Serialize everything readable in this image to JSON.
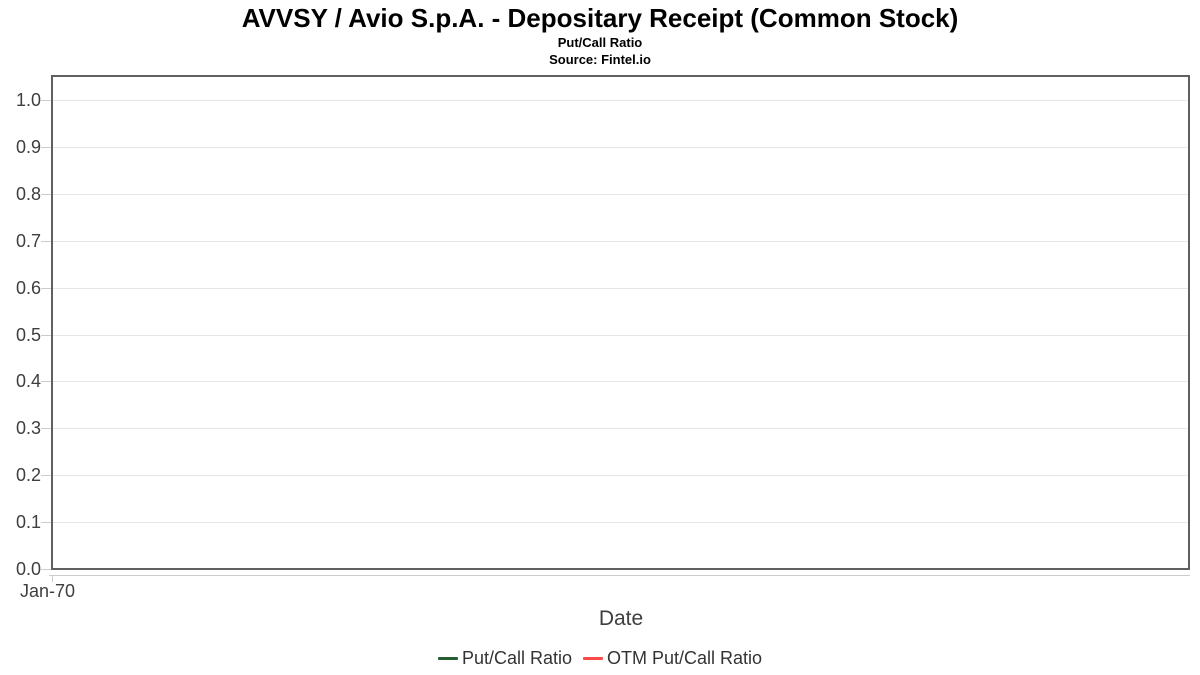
{
  "chart_data": {
    "type": "line",
    "title": "AVVSY / Avio S.p.A. - Depositary Receipt (Common Stock)",
    "subtitle": "Put/Call Ratio",
    "source_note": "Source: Fintel.io",
    "xlabel": "Date",
    "ylabel": "",
    "ylim": [
      0,
      1.05
    ],
    "grid": true,
    "legend_position": "bottom-center",
    "yticks": [
      0.0,
      0.1,
      0.2,
      0.3,
      0.4,
      0.5,
      0.6,
      0.7,
      0.8,
      0.9,
      1.0
    ],
    "ytick_labels": [
      "0.0",
      "0.1",
      "0.2",
      "0.3",
      "0.4",
      "0.5",
      "0.6",
      "0.7",
      "0.8",
      "0.9",
      "1.0"
    ],
    "xticks": [
      "Jan-70"
    ],
    "series": [
      {
        "name": "Put/Call Ratio",
        "color": "#255c31",
        "x": [],
        "values": []
      },
      {
        "name": "OTM Put/Call Ratio",
        "color": "#fb4b49",
        "x": [],
        "values": []
      }
    ]
  },
  "colors": {
    "plot_border": "#606060",
    "gridline": "#e6e6e6",
    "axis_line": "#cccccc",
    "tick_label": "#3e3e3e",
    "legend_text": "#333333",
    "title_text": "#000000",
    "background": "#ffffff"
  }
}
